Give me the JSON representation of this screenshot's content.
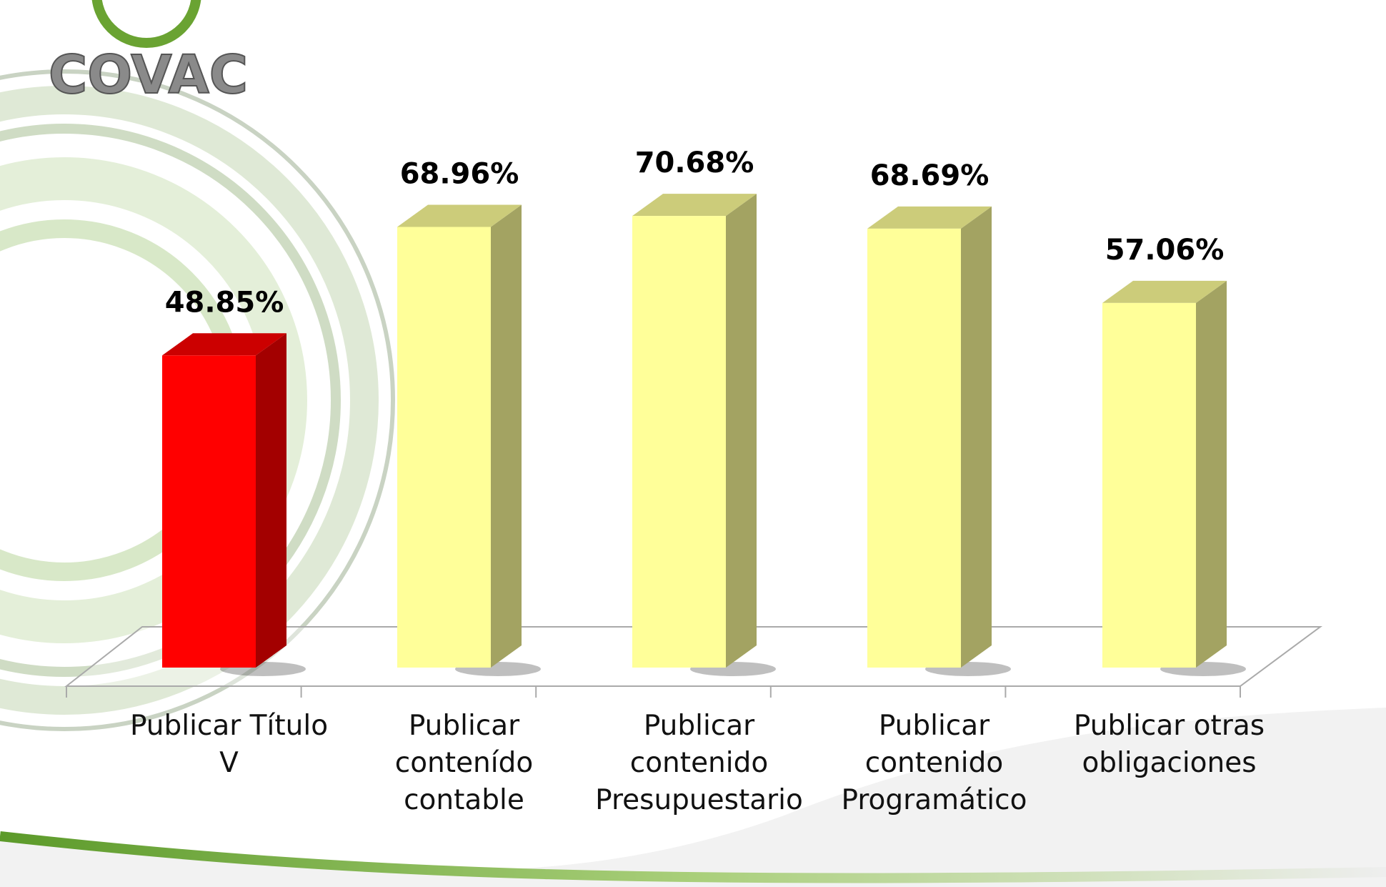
{
  "logo": "COVAC",
  "chart_data": {
    "type": "bar3d",
    "categories": [
      "Publicar Título V",
      "Publicar contenído contable",
      "Publicar contenido Presupuestario",
      "Publicar contenido Programático",
      "Publicar otras obligaciones"
    ],
    "values": [
      48.85,
      68.96,
      70.68,
      68.69,
      57.06
    ],
    "value_labels": [
      "48.85%",
      "68.96%",
      "70.68%",
      "68.69%",
      "57.06%"
    ],
    "colors": [
      "#ff0000",
      "#ffff99",
      "#ffff99",
      "#ffff99",
      "#ffff99"
    ],
    "ylim": [
      0,
      100
    ]
  }
}
